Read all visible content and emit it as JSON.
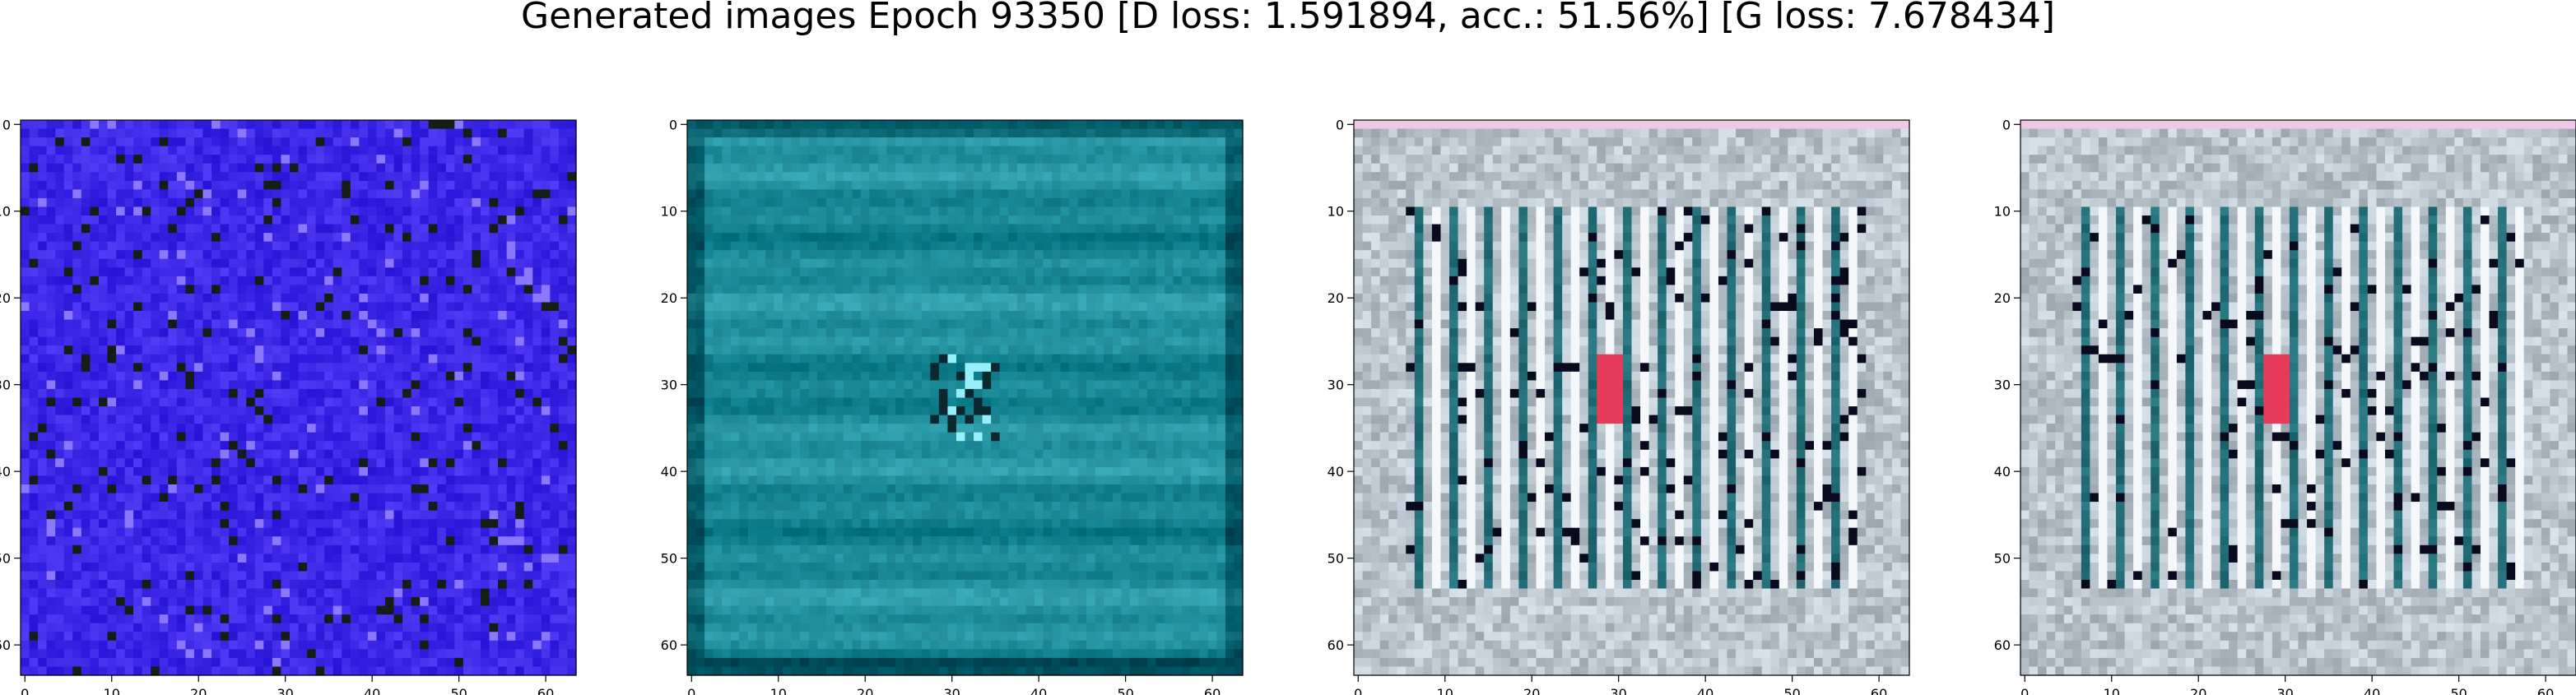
{
  "title": "Generated images Epoch 93350 [D loss: 1.591894, acc.: 51.56%] [G loss: 7.678434]",
  "chart_data": [
    {
      "type": "heatmap",
      "name": "",
      "dominant_color": "#3c28e6",
      "pattern": "noise",
      "xlim": [
        0,
        63
      ],
      "ylim": [
        0,
        63
      ],
      "xticks": [
        0,
        10,
        20,
        30,
        40,
        50,
        60
      ],
      "yticks": [
        0,
        10,
        20,
        30,
        40,
        50,
        60
      ]
    },
    {
      "type": "heatmap",
      "name": "",
      "dominant_color": "#1e8c99",
      "pattern": "horizontal",
      "xlim": [
        0,
        63
      ],
      "ylim": [
        0,
        63
      ],
      "xticks": [
        0,
        10,
        20,
        30,
        40,
        50,
        60
      ],
      "yticks": [
        0,
        10,
        20,
        30,
        40,
        50,
        60
      ]
    },
    {
      "type": "heatmap",
      "name": "",
      "dominant_color": "#b9c4cc",
      "pattern": "vertical-bars",
      "xlim": [
        0,
        63
      ],
      "ylim": [
        0,
        63
      ],
      "xticks": [
        0,
        10,
        20,
        30,
        40,
        50,
        60
      ],
      "yticks": [
        0,
        10,
        20,
        30,
        40,
        50,
        60
      ]
    },
    {
      "type": "heatmap",
      "name": "",
      "dominant_color": "#b9c4cc",
      "pattern": "vertical-bars",
      "xlim": [
        0,
        63
      ],
      "ylim": [
        0,
        63
      ],
      "xticks": [
        0,
        10,
        20,
        30,
        40,
        50,
        60
      ],
      "yticks": [
        0,
        10,
        20,
        30,
        40,
        50,
        60
      ]
    }
  ]
}
